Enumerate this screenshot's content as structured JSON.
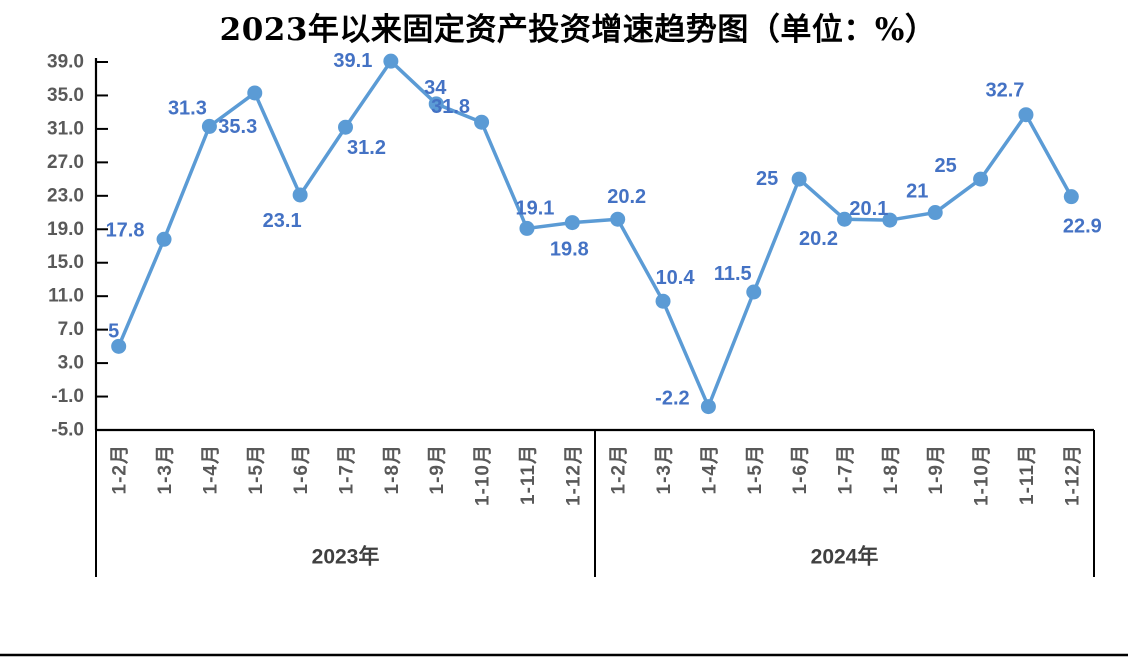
{
  "title": "2023年以来固定资产投资增速趋势图（单位：%）",
  "colors": {
    "line": "#5B9BD5",
    "marker": "#5B9BD5",
    "data_label": "#4472C4",
    "axis": "#000000",
    "tick_label": "#595959",
    "category_label": "#595959",
    "year_label": "#404040",
    "background": "#FFFFFF"
  },
  "chart_data": {
    "type": "line",
    "title": "2023年以来固定资产投资增速趋势图（单位：%）",
    "unit": "%",
    "legend": "none",
    "grid": "off",
    "y_axis": {
      "min": -5.0,
      "max": 39.0,
      "step": 4.0,
      "ticks": [
        39,
        35,
        31,
        27,
        23,
        19,
        15,
        11,
        7,
        3,
        -1,
        -5
      ],
      "tick_labels": [
        "39.0",
        "35.0",
        "31.0",
        "27.0",
        "23.0",
        "19.0",
        "15.0",
        "11.0",
        "7.0",
        "3.0",
        "-1.0",
        "-5.0"
      ]
    },
    "groups": [
      {
        "label": "2023年",
        "categories": [
          "1-2月",
          "1-3月",
          "1-4月",
          "1-5月",
          "1-6月",
          "1-7月",
          "1-8月",
          "1-9月",
          "1-10月",
          "1-11月",
          "1-12月"
        ]
      },
      {
        "label": "2024年",
        "categories": [
          "1-2月",
          "1-3月",
          "1-4月",
          "1-5月",
          "1-6月",
          "1-7月",
          "1-8月",
          "1-9月",
          "1-10月",
          "1-11月",
          "1-12月"
        ]
      }
    ],
    "series": [
      {
        "name": "固定资产投资增速",
        "values": [
          5,
          17.8,
          31.3,
          35.3,
          23.1,
          31.2,
          39.1,
          34,
          31.8,
          19.1,
          19.8,
          20.2,
          10.4,
          -2.2,
          11.5,
          25,
          20.2,
          20.1,
          21,
          25,
          32.7,
          22.9
        ],
        "point_labels": [
          "5",
          "17.8",
          "31.3",
          "35.3",
          "23.1",
          "31.2",
          "39.1",
          "34",
          "31.8",
          "19.1",
          "19.8",
          "20.2",
          "10.4",
          "-2.2",
          "11.5",
          "25",
          "20.2",
          "20.1",
          "21",
          "25",
          "32.7",
          "22.9"
        ],
        "label_offsets": [
          [
            -5,
            -15
          ],
          [
            -39,
            -9
          ],
          [
            -22,
            -18
          ],
          [
            -17,
            34
          ],
          [
            -18,
            26
          ],
          [
            21,
            21
          ],
          [
            -38,
            0
          ],
          [
            -1,
            -16
          ],
          [
            -31,
            -15
          ],
          [
            8,
            -20
          ],
          [
            -3,
            27
          ],
          [
            9,
            -22
          ],
          [
            12,
            -23
          ],
          [
            -36,
            -8
          ],
          [
            -21,
            -18
          ],
          [
            -32,
            0
          ],
          [
            -26,
            20
          ],
          [
            -21,
            -11
          ],
          [
            -18,
            -21
          ],
          [
            -35,
            -13
          ],
          [
            -21,
            -24
          ],
          [
            11,
            30
          ]
        ]
      }
    ]
  }
}
